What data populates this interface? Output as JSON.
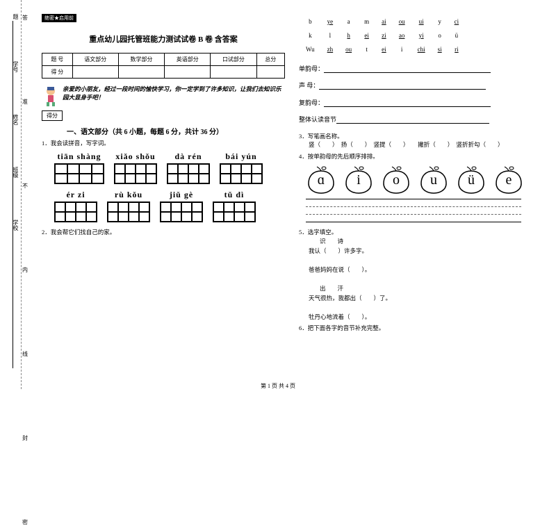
{
  "binding": {
    "fields": [
      "题",
      "学号",
      "姓名",
      "班级",
      "学校"
    ],
    "chars": [
      "答",
      "准",
      "不",
      "内",
      "线",
      "封",
      "密"
    ]
  },
  "header_stamp": "绝密★启用前",
  "title": "重点幼儿园托管班能力测试试卷 B 卷 含答案",
  "score_table": {
    "row1": [
      "题 号",
      "语文部分",
      "数学部分",
      "英语部分",
      "口试部分",
      "总分"
    ],
    "row2": [
      "得 分",
      "",
      "",
      "",
      "",
      ""
    ]
  },
  "greeting": "亲爱的小朋友，经过一段时间的愉快学习，你一定学到了许多知识，让我们去知识乐园大显身手吧！",
  "score_pill": "得分",
  "section1_title": "一、语文部分（共 6 小题，每题 6 分，共计 36 分）",
  "q1": "1．我会读拼音，写字词。",
  "pinyin_row1": [
    "tiān shàng",
    "xiǎo shǒu",
    "dà rén",
    "bái yún"
  ],
  "pinyin_row2": [
    "ér zi",
    "rù kǒu",
    "jiǔ gè",
    "tǔ dì"
  ],
  "q2": "2．我会帮它们找自己的家。",
  "pinyin_table": [
    [
      "b",
      "ye",
      "a",
      "m",
      "ai",
      "ou",
      "ui",
      "y",
      "ci"
    ],
    [
      "k",
      "l",
      "h",
      "ei",
      "zi",
      "ao",
      "yi",
      "o",
      "ü"
    ],
    [
      "Wu",
      "zh",
      "ou",
      "t",
      "ei",
      "i",
      "chi",
      "si",
      "ri"
    ]
  ],
  "pinyin_underline": [
    [
      false,
      true,
      false,
      false,
      true,
      true,
      true,
      false,
      true
    ],
    [
      false,
      false,
      true,
      true,
      true,
      true,
      true,
      false,
      false
    ],
    [
      false,
      true,
      true,
      false,
      true,
      false,
      true,
      true,
      true
    ]
  ],
  "fill_labels": {
    "dan": "单韵母：",
    "sheng": "声 母：",
    "fu": "复韵母：",
    "zheng": "整体认读音节"
  },
  "q3": {
    "title": "3．写笔画名称。",
    "items": "竖（　　）　扬（　　）　竖提（　　）　　撇折（　　）　竖折折勾（　　）"
  },
  "q4": "4．按单韵母的先后顺序排排。",
  "apples": [
    "ɑ",
    "i",
    "o",
    "u",
    "ü",
    "e"
  ],
  "q5": {
    "title": "5．选字填空。",
    "l1a": "识　　诗",
    "l1b": "我认（　　）许多字。",
    "l2": "爸爸妈妈在说（　　）。",
    "l3a": "出　　汗",
    "l3b": "天气很热，我都出（　　）了。",
    "l4": "牡丹心地流着（　　）。"
  },
  "q6": "6．把下面各字的音节补充完整。",
  "footer": "第 1 页 共 4 页"
}
